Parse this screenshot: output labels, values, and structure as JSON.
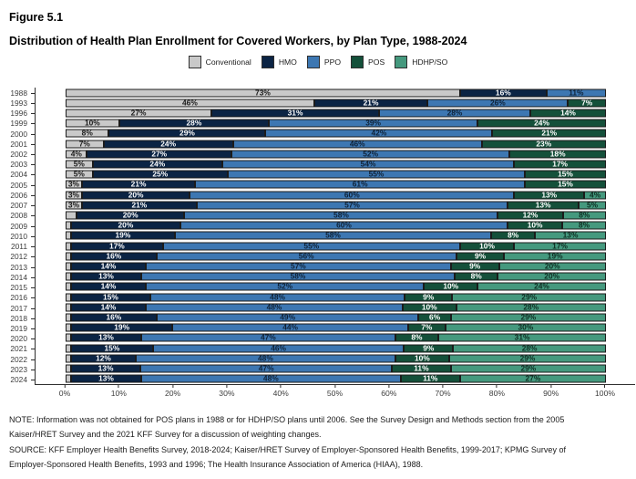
{
  "figure_label": "Figure 5.1",
  "title": "Distribution of Health Plan Enrollment for Covered Workers, by Plan Type, 1988-2024",
  "note_lines": [
    "NOTE: Information was not obtained for POS plans in 1988 or for HDHP/SO plans until 2006. See the Survey Design and Methods section from the 2005",
    "Kaiser/HRET Survey and the 2021 KFF Survey for a discussion of weighting changes."
  ],
  "source_lines": [
    "SOURCE: KFF Employer Health Benefits Survey, 2018-2024; Kaiser/HRET Survey of Employer-Sponsored Health Benefits, 1999-2017; KPMG Survey of",
    "Employer-Sponsored Health Benefits, 1993 and 1996; The Health Insurance Association of America (HIAA), 1988."
  ],
  "chart_data": {
    "type": "bar",
    "orientation": "horizontal",
    "stacked": true,
    "title": "Distribution of Health Plan Enrollment for Covered Workers, by Plan Type, 1988-2024",
    "xlabel": "",
    "ylabel": "",
    "xlim": [
      0,
      100
    ],
    "grid": false,
    "legend_position": "top",
    "label_threshold": 3,
    "x_ticks": [
      "0%",
      "10%",
      "20%",
      "30%",
      "40%",
      "50%",
      "60%",
      "70%",
      "80%",
      "90%",
      "100%"
    ],
    "categories": [
      "1988",
      "1993",
      "1996",
      "1999",
      "2000",
      "2001",
      "2002",
      "2003",
      "2004",
      "2005",
      "2006",
      "2007",
      "2008",
      "2009",
      "2010",
      "2011",
      "2012",
      "2013",
      "2014",
      "2015",
      "2016",
      "2017",
      "2018",
      "2019",
      "2020",
      "2021",
      "2022",
      "2023",
      "2024"
    ],
    "series": [
      {
        "key": "conventional",
        "name": "Conventional",
        "color": "#c9c9c9",
        "label_color": "#1a1a1a",
        "values": [
          73,
          46,
          27,
          10,
          8,
          7,
          4,
          5,
          5,
          3,
          3,
          3,
          2,
          1,
          1,
          1,
          1,
          1,
          1,
          1,
          1,
          1,
          1,
          1,
          1,
          1,
          1,
          1,
          1
        ]
      },
      {
        "key": "hmo",
        "name": "HMO",
        "color": "#0b2444",
        "label_color": "#ffffff",
        "values": [
          16,
          21,
          31,
          28,
          29,
          24,
          27,
          24,
          25,
          21,
          20,
          21,
          20,
          20,
          19,
          17,
          16,
          14,
          13,
          14,
          15,
          14,
          16,
          19,
          13,
          15,
          12,
          13,
          13
        ]
      },
      {
        "key": "ppo",
        "name": "PPO",
        "color": "#3d77b2",
        "label_color": "#0e2238",
        "values": [
          11,
          26,
          28,
          39,
          42,
          46,
          52,
          54,
          55,
          61,
          60,
          57,
          58,
          60,
          58,
          55,
          56,
          57,
          58,
          52,
          48,
          48,
          49,
          44,
          47,
          46,
          48,
          47,
          48
        ]
      },
      {
        "key": "pos",
        "name": "POS",
        "color": "#14503a",
        "label_color": "#ffffff",
        "values": [
          null,
          7,
          14,
          24,
          21,
          23,
          18,
          17,
          15,
          15,
          13,
          13,
          12,
          10,
          8,
          10,
          9,
          9,
          8,
          10,
          9,
          10,
          6,
          7,
          8,
          9,
          10,
          11,
          11
        ]
      },
      {
        "key": "hdhpso",
        "name": "HDHP/SO",
        "color": "#45997e",
        "label_color": "#0d2e22",
        "values": [
          null,
          null,
          null,
          null,
          null,
          null,
          null,
          null,
          null,
          null,
          4,
          5,
          8,
          8,
          13,
          17,
          19,
          20,
          20,
          24,
          29,
          28,
          29,
          30,
          31,
          28,
          29,
          29,
          27
        ]
      }
    ]
  }
}
